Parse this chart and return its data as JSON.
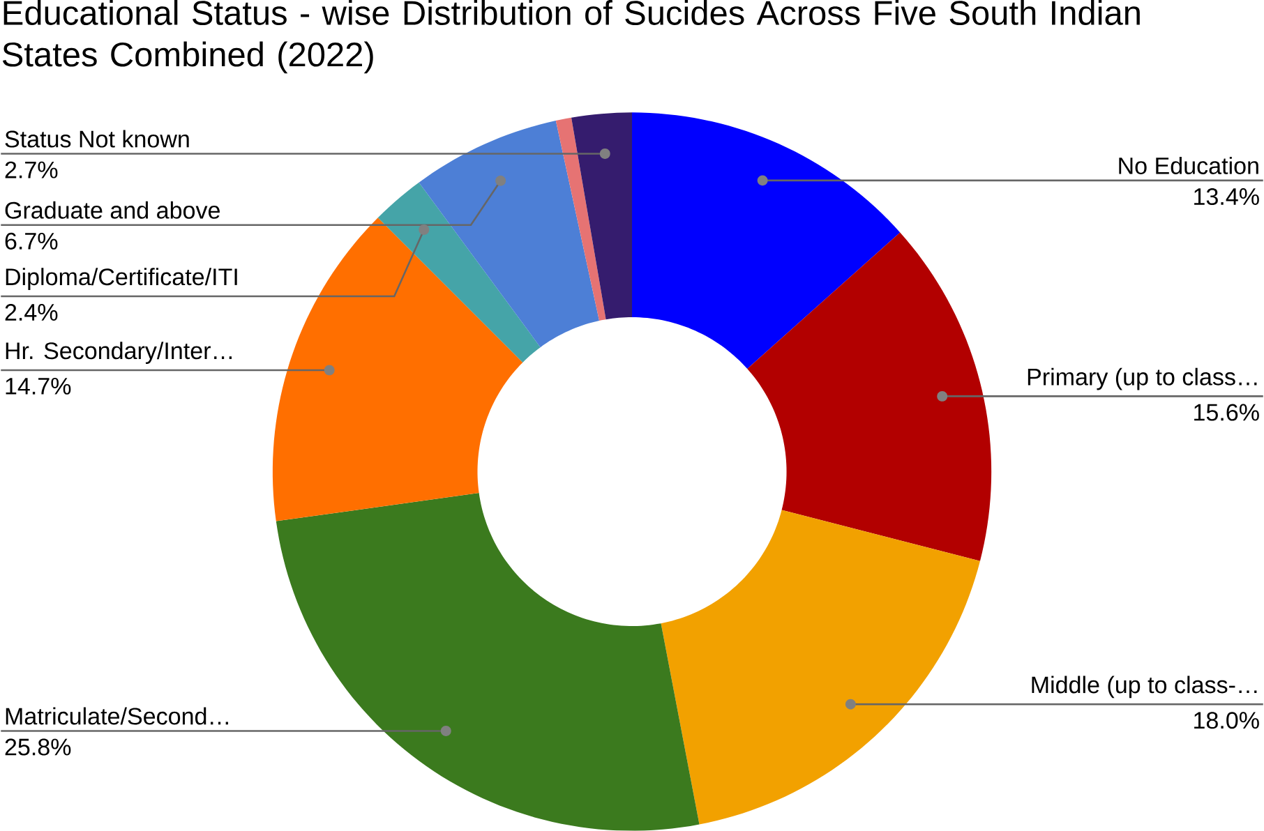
{
  "chart_data": {
    "type": "donut",
    "title": "Educational Status - wise Distribution of Sucides Across Five South Indian States Combined (2022)",
    "categories": [
      "No Education",
      "Primary (up to class…",
      "Middle (up to class-…",
      "Matriculate/Second…",
      "Hr. Secondary/Inter…",
      "Diploma/Certificate/ITI",
      "Graduate and above",
      null,
      "Status Not known"
    ],
    "values": [
      13.4,
      15.6,
      18.0,
      25.8,
      14.7,
      2.4,
      6.7,
      0.7,
      2.7
    ],
    "value_labels": [
      "13.4%",
      "15.6%",
      "18.0%",
      "25.8%",
      "14.7%",
      "2.4%",
      "6.7%",
      null,
      "2.7%"
    ],
    "colors": [
      "#0000ff",
      "#b20000",
      "#f2a100",
      "#3b7a1e",
      "#ff6f00",
      "#45a4a8",
      "#4d7fd6",
      "#e67373",
      "#351c6e"
    ],
    "legend": false
  }
}
